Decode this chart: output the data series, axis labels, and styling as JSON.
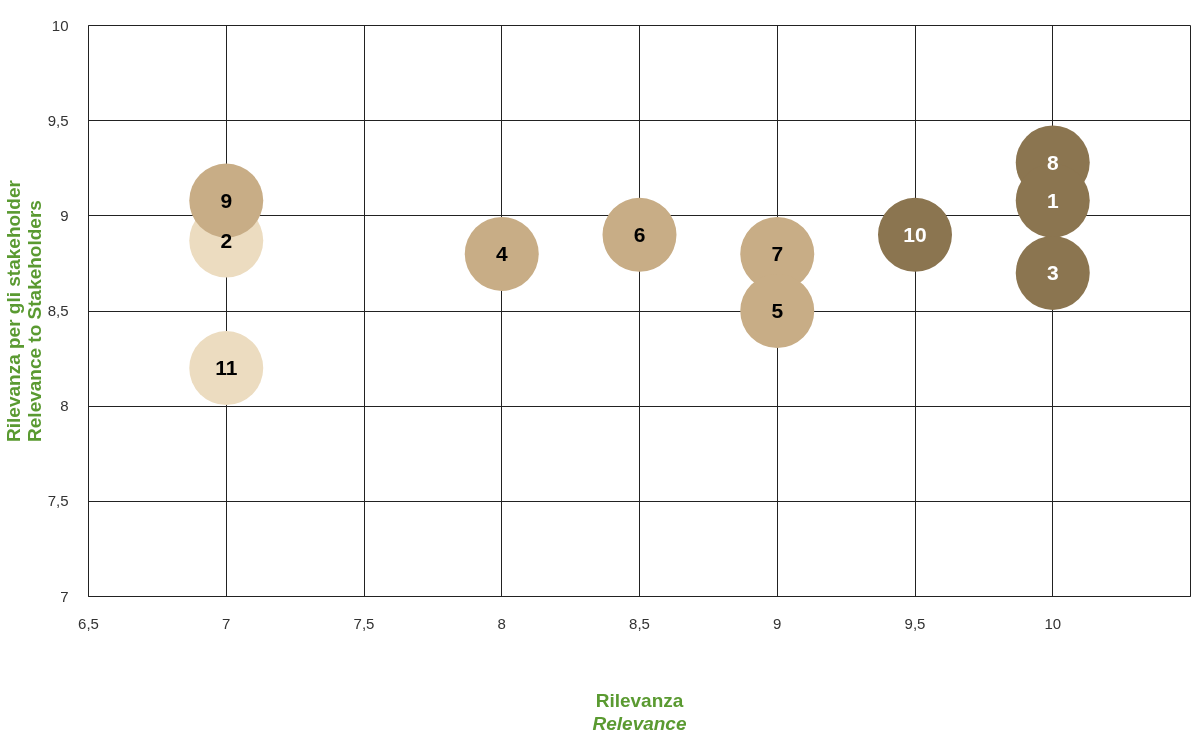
{
  "chart_data": {
    "type": "scatter",
    "xlabel": "Rilevanza\nRelevance",
    "ylabel": "Rilevanza per gli stakeholder\nRelevance to Stakeholders",
    "x": [
      7,
      7,
      7,
      8,
      8.5,
      9,
      9,
      9.5,
      10,
      10,
      10
    ],
    "values": [
      8.87,
      9.08,
      8.2,
      8.8,
      8.9,
      8.8,
      8.5,
      8.9,
      9.28,
      9.08,
      8.7
    ],
    "colors": [
      "#ecdcc0",
      "#c8ad86",
      "#ecdcc0",
      "#c8ad86",
      "#c8ad86",
      "#c8ad86",
      "#c8ad86",
      "#8b7550",
      "#8b7550",
      "#8b7550",
      "#8b7550"
    ],
    "annotations": [
      {
        "text": "2",
        "x": 7,
        "y": 8.87
      },
      {
        "text": "9",
        "x": 7,
        "y": 9.08
      },
      {
        "text": "11",
        "x": 7,
        "y": 8.2
      },
      {
        "text": "4",
        "x": 8,
        "y": 8.8
      },
      {
        "text": "6",
        "x": 8.5,
        "y": 8.9
      },
      {
        "text": "7",
        "x": 9,
        "y": 8.8
      },
      {
        "text": "5",
        "x": 9,
        "y": 8.5
      },
      {
        "text": "10",
        "x": 9.5,
        "y": 8.9
      },
      {
        "text": "8",
        "x": 10,
        "y": 9.28
      },
      {
        "text": "1",
        "x": 10,
        "y": 9.08
      },
      {
        "text": "3",
        "x": 10,
        "y": 8.7
      }
    ],
    "xlim": [
      6.5,
      10.5
    ],
    "ylim": [
      7,
      10
    ],
    "xticks": [
      {
        "value": 6.5,
        "label": "6,5"
      },
      7,
      {
        "value": 7.5,
        "label": "7,5"
      },
      8,
      {
        "value": 8.5,
        "label": "8,5"
      },
      9,
      {
        "value": 9.5,
        "label": "9,5"
      },
      10
    ],
    "yticks": [
      7,
      {
        "value": 7.5,
        "label": "7,5"
      },
      8,
      {
        "value": 8.5,
        "label": "8,5"
      },
      9,
      {
        "value": 9.5,
        "label": "9,5"
      },
      10
    ],
    "grid": true,
    "marker": "circle"
  }
}
